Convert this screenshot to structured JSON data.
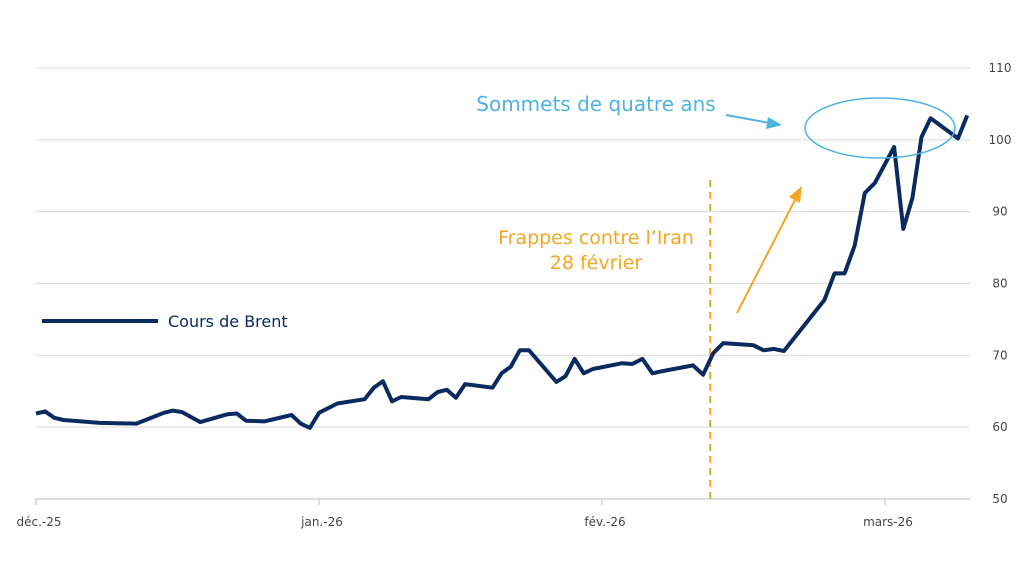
{
  "chart_data": {
    "type": "line",
    "title": "",
    "xlabel": "",
    "ylabel": "",
    "ylim": [
      50,
      110
    ],
    "yticks": [
      50,
      60,
      70,
      80,
      90,
      100,
      110
    ],
    "y_axis_side": "right",
    "grid": true,
    "x_tick_labels": [
      {
        "label": "déc.-25",
        "date": "2025-12-01"
      },
      {
        "label": "jan.-26",
        "date": "2026-01-01"
      },
      {
        "label": "fév.-26",
        "date": "2026-02-01"
      },
      {
        "label": "mars-26",
        "date": "2026-03-01"
      }
    ],
    "legend": {
      "placement": "left",
      "entries": [
        "Cours de Brent"
      ]
    },
    "series": [
      {
        "name": "Cours de Brent",
        "color": "#0b2a60",
        "points": [
          [
            "2025-12-01",
            61.9
          ],
          [
            "2025-12-02",
            62.2
          ],
          [
            "2025-12-03",
            61.3
          ],
          [
            "2025-12-04",
            61.0
          ],
          [
            "2025-12-08",
            60.6
          ],
          [
            "2025-12-12",
            60.5
          ],
          [
            "2025-12-15",
            62.0
          ],
          [
            "2025-12-16",
            62.3
          ],
          [
            "2025-12-17",
            62.1
          ],
          [
            "2025-12-19",
            60.7
          ],
          [
            "2025-12-22",
            61.8
          ],
          [
            "2025-12-23",
            61.9
          ],
          [
            "2025-12-24",
            60.9
          ],
          [
            "2025-12-26",
            60.8
          ],
          [
            "2025-12-29",
            61.7
          ],
          [
            "2025-12-30",
            60.5
          ],
          [
            "2025-12-31",
            59.9
          ],
          [
            "2026-01-01",
            62.0
          ],
          [
            "2026-01-03",
            63.3
          ],
          [
            "2026-01-06",
            63.9
          ],
          [
            "2026-01-07",
            65.5
          ],
          [
            "2026-01-08",
            66.4
          ],
          [
            "2026-01-09",
            63.6
          ],
          [
            "2026-01-10",
            64.2
          ],
          [
            "2026-01-13",
            63.9
          ],
          [
            "2026-01-14",
            64.9
          ],
          [
            "2026-01-15",
            65.2
          ],
          [
            "2026-01-16",
            64.1
          ],
          [
            "2026-01-17",
            66.0
          ],
          [
            "2026-01-20",
            65.5
          ],
          [
            "2026-01-21",
            67.5
          ],
          [
            "2026-01-22",
            68.4
          ],
          [
            "2026-01-23",
            70.7
          ],
          [
            "2026-01-24",
            70.7
          ],
          [
            "2026-01-27",
            66.3
          ],
          [
            "2026-01-28",
            67.1
          ],
          [
            "2026-01-29",
            69.5
          ],
          [
            "2026-01-30",
            67.5
          ],
          [
            "2026-01-31",
            68.1
          ],
          [
            "2026-02-03",
            68.9
          ],
          [
            "2026-02-04",
            68.8
          ],
          [
            "2026-02-05",
            69.5
          ],
          [
            "2026-02-06",
            67.5
          ],
          [
            "2026-02-07",
            67.8
          ],
          [
            "2026-02-10",
            68.6
          ],
          [
            "2026-02-11",
            67.3
          ],
          [
            "2026-02-12",
            70.3
          ],
          [
            "2026-02-13",
            71.7
          ],
          [
            "2026-02-16",
            71.4
          ],
          [
            "2026-02-17",
            70.7
          ],
          [
            "2026-02-18",
            70.9
          ],
          [
            "2026-02-19",
            70.6
          ],
          [
            "2026-02-23",
            77.7
          ],
          [
            "2026-02-24",
            81.4
          ],
          [
            "2026-02-25",
            81.4
          ],
          [
            "2026-02-26",
            85.3
          ],
          [
            "2026-02-27",
            92.6
          ],
          [
            "2026-02-28",
            94.0
          ],
          [
            "2026-03-02",
            99.0
          ],
          [
            "2026-03-03",
            87.6
          ],
          [
            "2026-03-04",
            91.9
          ],
          [
            "2026-03-05",
            100.4
          ],
          [
            "2026-03-06",
            103.0
          ],
          [
            "2026-03-09",
            100.2
          ],
          [
            "2026-03-10",
            103.4
          ]
        ]
      }
    ],
    "annotations": {
      "strike": {
        "line1": "Frappes contre l’Iran",
        "line2": "28 février",
        "line_x_date": "2026-02-12",
        "color": "#f5a623"
      },
      "peak": {
        "text": "Sommets de quatre ans",
        "color": "#4fb3e0"
      }
    }
  }
}
